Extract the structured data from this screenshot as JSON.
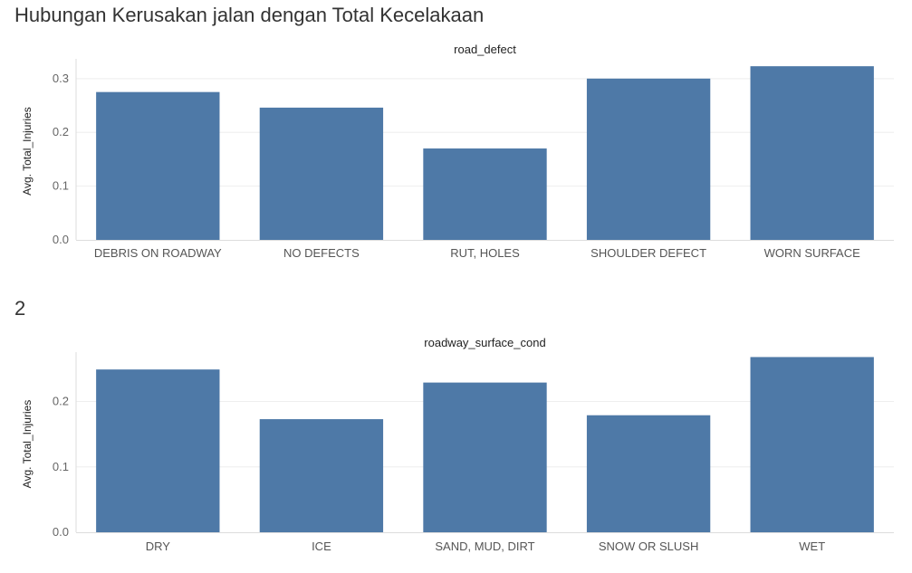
{
  "sheet_title": "Hubungan Kerusakan jalan dengan Total Kecelakaan",
  "section_title": "2",
  "colors": {
    "bar": "#4e79a7"
  },
  "chart_data": [
    {
      "type": "bar",
      "header": "road_defect",
      "ylabel": "Avg. Total_Injuries",
      "xlabel": "",
      "ylim": [
        0,
        0.33
      ],
      "yticks": [
        "0.0",
        "0.1",
        "0.2",
        "0.3"
      ],
      "ytick_values": [
        0,
        0.1,
        0.2,
        0.3
      ],
      "categories": [
        "DEBRIS ON ROADWAY",
        "NO DEFECTS",
        "RUT, HOLES",
        "SHOULDER DEFECT",
        "WORN SURFACE"
      ],
      "values": [
        0.275,
        0.246,
        0.17,
        0.3,
        0.323
      ]
    },
    {
      "type": "bar",
      "header": "roadway_surface_cond",
      "ylabel": "Avg. Total_Injuries",
      "xlabel": "",
      "ylim": [
        0,
        0.27
      ],
      "yticks": [
        "0.0",
        "0.1",
        "0.2"
      ],
      "ytick_values": [
        0,
        0.1,
        0.2
      ],
      "categories": [
        "DRY",
        "ICE",
        "SAND, MUD, DIRT",
        "SNOW OR SLUSH",
        "WET"
      ],
      "values": [
        0.249,
        0.173,
        0.229,
        0.179,
        0.268
      ]
    }
  ]
}
